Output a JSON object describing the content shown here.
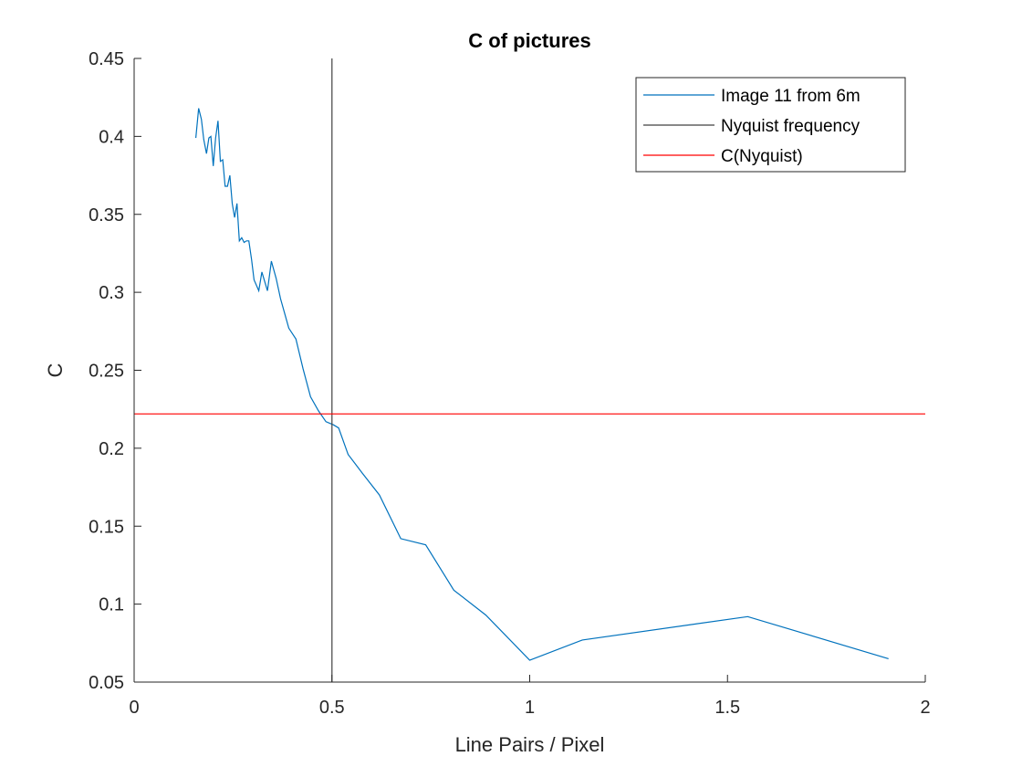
{
  "chart_data": {
    "type": "line",
    "title": "C of pictures",
    "xlabel": "Line Pairs / Pixel",
    "ylabel": "C",
    "xlim": [
      0,
      2
    ],
    "ylim": [
      0.05,
      0.45
    ],
    "xticks": [
      0,
      0.5,
      1,
      1.5,
      2
    ],
    "xtick_labels": [
      "0",
      "0.5",
      "1",
      "1.5",
      "2"
    ],
    "yticks": [
      0.05,
      0.1,
      0.15,
      0.2,
      0.25,
      0.3,
      0.35,
      0.4,
      0.45
    ],
    "ytick_labels": [
      "0.05",
      "0.1",
      "0.15",
      "0.2",
      "0.25",
      "0.3",
      "0.35",
      "0.4",
      "0.45"
    ],
    "grid": false,
    "legend_position": "top-right",
    "series": [
      {
        "name": "Image 11 from 6m",
        "color": "#0072bd",
        "x": [
          0.156,
          0.163,
          0.17,
          0.176,
          0.183,
          0.189,
          0.194,
          0.2,
          0.206,
          0.212,
          0.218,
          0.224,
          0.23,
          0.236,
          0.242,
          0.248,
          0.254,
          0.26,
          0.266,
          0.272,
          0.278,
          0.284,
          0.29,
          0.297,
          0.303,
          0.315,
          0.323,
          0.337,
          0.347,
          0.359,
          0.37,
          0.38,
          0.391,
          0.409,
          0.427,
          0.446,
          0.466,
          0.485,
          0.504,
          0.517,
          0.541,
          0.577,
          0.62,
          0.674,
          0.737,
          0.808,
          0.889,
          1.0,
          1.133,
          1.551,
          1.907
        ],
        "y": [
          0.399,
          0.418,
          0.411,
          0.398,
          0.389,
          0.399,
          0.4,
          0.381,
          0.399,
          0.41,
          0.384,
          0.385,
          0.368,
          0.368,
          0.375,
          0.357,
          0.348,
          0.357,
          0.333,
          0.335,
          0.332,
          0.333,
          0.333,
          0.321,
          0.308,
          0.301,
          0.313,
          0.301,
          0.32,
          0.309,
          0.296,
          0.287,
          0.277,
          0.27,
          0.251,
          0.233,
          0.224,
          0.217,
          0.215,
          0.213,
          0.196,
          0.184,
          0.17,
          0.142,
          0.138,
          0.109,
          0.093,
          0.064,
          0.077,
          0.092,
          0.065
        ]
      },
      {
        "name": "Nyquist frequency",
        "color": "#404040",
        "x": [
          0.5,
          0.5
        ],
        "y": [
          0.05,
          0.45
        ]
      },
      {
        "name": "C(Nyquist)",
        "color": "#ff0000",
        "x": [
          0,
          2
        ],
        "y": [
          0.222,
          0.222
        ]
      }
    ]
  }
}
